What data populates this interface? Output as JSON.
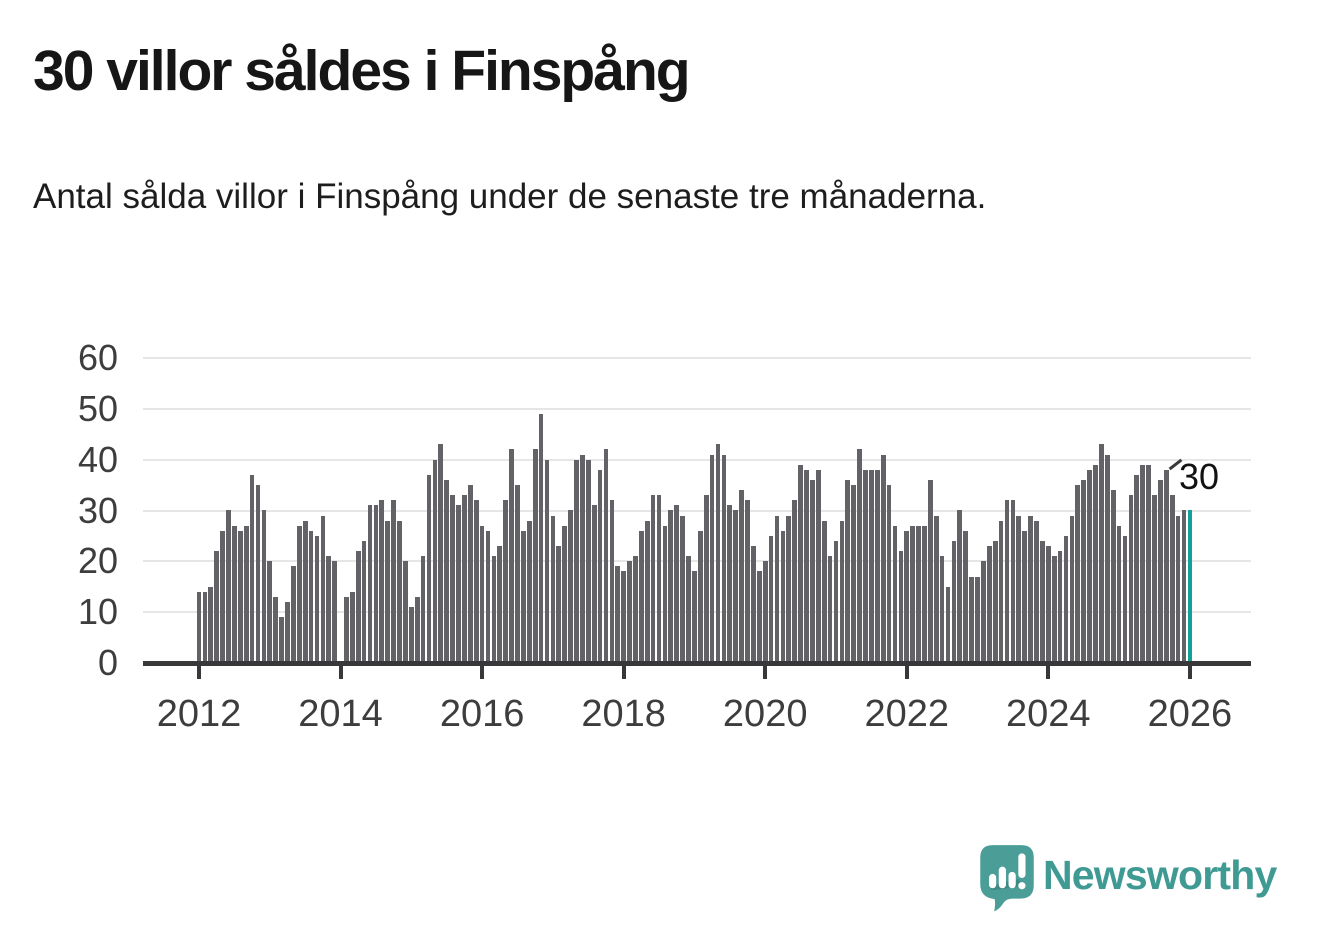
{
  "title": "30 villor såldes i Finspång",
  "subtitle": "Antal sålda villor i Finspång under de senaste tre månaderna.",
  "annotation": {
    "text": "30"
  },
  "branding": {
    "name": "Newsworthy",
    "icon": "newsworthy-bubble-chart-icon"
  },
  "colors": {
    "bar": "#636367",
    "highlight": "#12a19a",
    "axis": "#38383a",
    "grid": "#e6e6e6",
    "title_text": "#161616",
    "axis_text": "#3d3d3d",
    "brand": "#3f9a93"
  },
  "chart_data": {
    "type": "bar",
    "title": "30 villor såldes i Finspång",
    "subtitle": "Antal sålda villor i Finspång under de senaste tre månaderna.",
    "unit": "antal sålda villor (rullande 3 månader)",
    "x_start": "2012-01",
    "x_interval": "monthly",
    "x_tick_labels": [
      "2012",
      "2014",
      "2016",
      "2018",
      "2020",
      "2022",
      "2024",
      "2026"
    ],
    "x_tick_month_offsets": [
      0,
      24,
      48,
      72,
      96,
      120,
      144,
      168
    ],
    "y_ticks": [
      0,
      10,
      20,
      30,
      40,
      50,
      60
    ],
    "ylim": [
      0,
      60
    ],
    "grid": "horizontal",
    "missing_months": [
      "2014-01"
    ],
    "highlight_last": true,
    "last_value_label": "30",
    "values": [
      14,
      14,
      15,
      22,
      26,
      30,
      27,
      26,
      27,
      37,
      35,
      30,
      20,
      13,
      9,
      12,
      19,
      27,
      28,
      26,
      25,
      29,
      21,
      20,
      0,
      13,
      14,
      22,
      24,
      31,
      31,
      32,
      28,
      32,
      28,
      20,
      11,
      13,
      21,
      37,
      40,
      43,
      36,
      33,
      31,
      33,
      35,
      32,
      27,
      26,
      21,
      23,
      32,
      42,
      35,
      26,
      28,
      42,
      49,
      40,
      29,
      23,
      27,
      30,
      40,
      41,
      40,
      31,
      38,
      42,
      32,
      19,
      18,
      20,
      21,
      26,
      28,
      33,
      33,
      27,
      30,
      31,
      29,
      21,
      18,
      26,
      33,
      41,
      43,
      41,
      31,
      30,
      34,
      32,
      23,
      18,
      20,
      25,
      29,
      26,
      29,
      32,
      39,
      38,
      36,
      38,
      28,
      21,
      24,
      28,
      36,
      35,
      42,
      38,
      38,
      38,
      41,
      35,
      27,
      22,
      26,
      27,
      27,
      27,
      36,
      29,
      21,
      15,
      24,
      30,
      26,
      17,
      17,
      20,
      23,
      24,
      28,
      32,
      32,
      29,
      26,
      29,
      28,
      24,
      23,
      21,
      22,
      25,
      29,
      35,
      36,
      38,
      39,
      43,
      41,
      34,
      27,
      25,
      33,
      37,
      39,
      39,
      33,
      36,
      38,
      33,
      29,
      30,
      30
    ]
  }
}
